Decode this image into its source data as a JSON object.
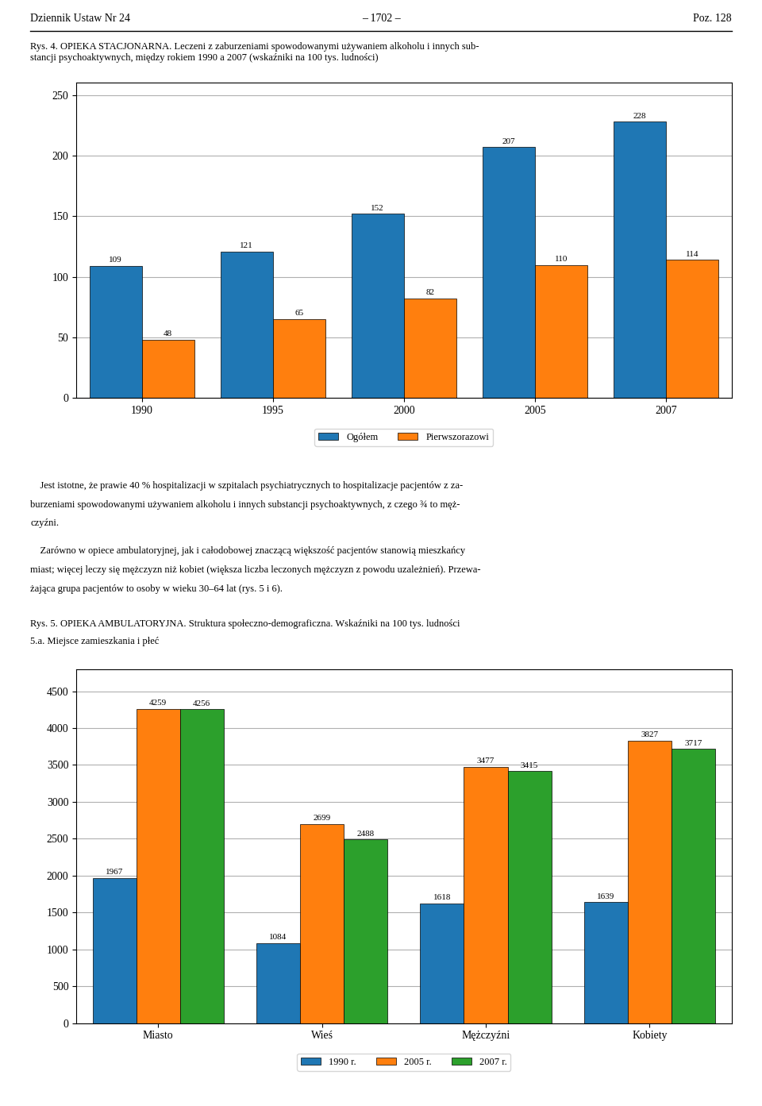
{
  "chart_data": [
    {
      "type": "bar",
      "title": "Rys. 4. OPIEKA STACJONARNA. Leczeni z zaburzeniami spowodowanymi używaniem alkoholu i innych sub-\nstancji psychoaktywnych, między rokiem 1990 a 2007 (wskaźniki na 100 tys. ludności)",
      "annotations": [
        "Dziennik Ustaw Nr 24",
        "– 1702 –",
        "Poz. 128"
      ],
      "categories": [
        "1990",
        "1995",
        "2000",
        "2005",
        "2007"
      ],
      "series": [
        {
          "name": "Ogółem",
          "values": [
            109,
            121,
            152,
            207,
            228
          ]
        },
        {
          "name": "Pierwszorazowi",
          "values": [
            48,
            65,
            82,
            110,
            114
          ]
        }
      ],
      "ylim": [
        0,
        260
      ],
      "yticks": [
        0,
        50,
        100,
        150,
        200,
        250
      ],
      "grid": true,
      "data_labels": true,
      "legend": "upper center"
    },
    {
      "type": "bar",
      "title": "Rys. 5. OPIEKA AMBULATORYJNA. Struktura społeczno-demograficzna. Wskaźniki na 100 tys. ludności",
      "subtitle": "5.a. Miejsce zamieszkania i płeć",
      "annotations": [
        "    Jest istotne, że prawie 40 % hospitalizacji w szpitalach psychiatrycznych to hospitalizacje pacjentów z za-",
        "burzeniami spowodowanymi używaniem alkoholu i innych substancji psychoaktywnych, z czego ¾ to męż-",
        "czyźni.",
        "    Zarówno w opiece ambulatoryjnej, jak i całodobowej znaczącą większość pacjentów stanowią mieszkańcy",
        "miast; więcej leczy się mężczyzn niż kobiet (większa liczba leczonych mężczyzn z powodu uzależnień). Przewa-",
        "żająca grupa pacjentów to osoby w wieku 30–64 lat (rys. 5 i 6)."
      ],
      "categories": [
        "Miasto",
        "Wieś",
        "Mężczyźni",
        "Kobiety"
      ],
      "series": [
        {
          "name": "1990 r.",
          "values": [
            1967,
            1084,
            1618,
            1639
          ]
        },
        {
          "name": "2005 r.",
          "values": [
            4259,
            2699,
            3477,
            3827
          ]
        },
        {
          "name": "2007 r.",
          "values": [
            4256,
            2488,
            3415,
            3717
          ]
        }
      ],
      "ylim": [
        0,
        4800
      ],
      "yticks": [
        0,
        500,
        1000,
        1500,
        2000,
        2500,
        3000,
        3500,
        4000,
        4500
      ],
      "grid": true,
      "data_labels": true,
      "legend": "upper center"
    }
  ]
}
